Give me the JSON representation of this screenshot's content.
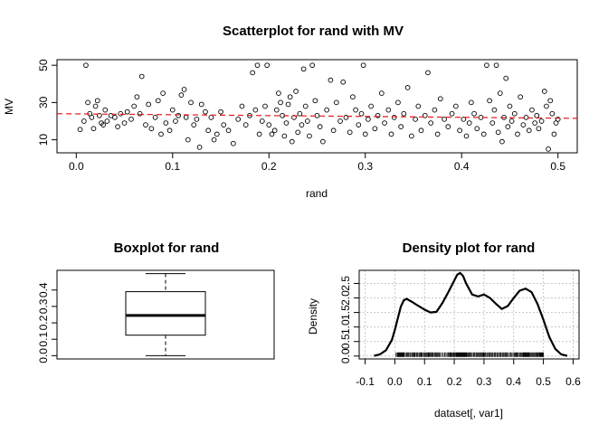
{
  "chart_data": [
    {
      "type": "scatter",
      "title": "Scatterplot for rand with MV",
      "xlabel": "rand",
      "ylabel": "MV",
      "xlim": [
        -0.02,
        0.52
      ],
      "ylim": [
        3,
        53
      ],
      "xticks": [
        0.0,
        0.1,
        0.2,
        0.3,
        0.4,
        0.5
      ],
      "xtick_labels": [
        "0.0",
        "0.1",
        "0.2",
        "0.3",
        "0.4",
        "0.5"
      ],
      "yticks": [
        10,
        30,
        50
      ],
      "ytick_labels": [
        "10",
        "30",
        "50"
      ],
      "trend_line": {
        "style": "dashed",
        "color": "#e31a1c",
        "start": [
          -0.02,
          24.0
        ],
        "end": [
          0.52,
          21.5
        ]
      },
      "point_color": "#000000",
      "points": [
        [
          0.004,
          15.5
        ],
        [
          0.008,
          20
        ],
        [
          0.01,
          50
        ],
        [
          0.012,
          30
        ],
        [
          0.014,
          24
        ],
        [
          0.016,
          22
        ],
        [
          0.018,
          16
        ],
        [
          0.02,
          28
        ],
        [
          0.022,
          31
        ],
        [
          0.024,
          23
        ],
        [
          0.026,
          19
        ],
        [
          0.028,
          18
        ],
        [
          0.03,
          26
        ],
        [
          0.032,
          20
        ],
        [
          0.036,
          23
        ],
        [
          0.04,
          22
        ],
        [
          0.043,
          17
        ],
        [
          0.046,
          24
        ],
        [
          0.05,
          19
        ],
        [
          0.053,
          25
        ],
        [
          0.057,
          21
        ],
        [
          0.06,
          28
        ],
        [
          0.063,
          33
        ],
        [
          0.066,
          24
        ],
        [
          0.068,
          44
        ],
        [
          0.072,
          18
        ],
        [
          0.075,
          29
        ],
        [
          0.078,
          16
        ],
        [
          0.082,
          22
        ],
        [
          0.085,
          31
        ],
        [
          0.088,
          13
        ],
        [
          0.09,
          35
        ],
        [
          0.093,
          19
        ],
        [
          0.097,
          15
        ],
        [
          0.1,
          26
        ],
        [
          0.103,
          20
        ],
        [
          0.106,
          23
        ],
        [
          0.109,
          34
        ],
        [
          0.112,
          37
        ],
        [
          0.114,
          22
        ],
        [
          0.116,
          10
        ],
        [
          0.119,
          30
        ],
        [
          0.122,
          18
        ],
        [
          0.125,
          21
        ],
        [
          0.128,
          6
        ],
        [
          0.13,
          29
        ],
        [
          0.134,
          25
        ],
        [
          0.137,
          15
        ],
        [
          0.14,
          22
        ],
        [
          0.143,
          10
        ],
        [
          0.146,
          13
        ],
        [
          0.15,
          25
        ],
        [
          0.153,
          18
        ],
        [
          0.158,
          15
        ],
        [
          0.163,
          8
        ],
        [
          0.168,
          21
        ],
        [
          0.172,
          28
        ],
        [
          0.176,
          18
        ],
        [
          0.18,
          23
        ],
        [
          0.183,
          46
        ],
        [
          0.186,
          26
        ],
        [
          0.188,
          50
        ],
        [
          0.19,
          13
        ],
        [
          0.193,
          20
        ],
        [
          0.196,
          28
        ],
        [
          0.198,
          50
        ],
        [
          0.2,
          18
        ],
        [
          0.203,
          13
        ],
        [
          0.206,
          15
        ],
        [
          0.208,
          26
        ],
        [
          0.21,
          35
        ],
        [
          0.212,
          30
        ],
        [
          0.214,
          23
        ],
        [
          0.216,
          12
        ],
        [
          0.218,
          19
        ],
        [
          0.22,
          29
        ],
        [
          0.222,
          33
        ],
        [
          0.224,
          9
        ],
        [
          0.226,
          22
        ],
        [
          0.228,
          36
        ],
        [
          0.23,
          14
        ],
        [
          0.232,
          24
        ],
        [
          0.234,
          18
        ],
        [
          0.236,
          48
        ],
        [
          0.238,
          28
        ],
        [
          0.24,
          20
        ],
        [
          0.242,
          12
        ],
        [
          0.245,
          50
        ],
        [
          0.248,
          31
        ],
        [
          0.25,
          23
        ],
        [
          0.253,
          17
        ],
        [
          0.256,
          9
        ],
        [
          0.26,
          26
        ],
        [
          0.264,
          42
        ],
        [
          0.267,
          15
        ],
        [
          0.27,
          30
        ],
        [
          0.274,
          20
        ],
        [
          0.277,
          41
        ],
        [
          0.28,
          22
        ],
        [
          0.284,
          14
        ],
        [
          0.287,
          33
        ],
        [
          0.29,
          26
        ],
        [
          0.293,
          18
        ],
        [
          0.296,
          24
        ],
        [
          0.298,
          50
        ],
        [
          0.3,
          13
        ],
        [
          0.303,
          21
        ],
        [
          0.306,
          28
        ],
        [
          0.31,
          16
        ],
        [
          0.313,
          23
        ],
        [
          0.317,
          35
        ],
        [
          0.32,
          19
        ],
        [
          0.324,
          26
        ],
        [
          0.327,
          13
        ],
        [
          0.33,
          22
        ],
        [
          0.334,
          30
        ],
        [
          0.337,
          17
        ],
        [
          0.34,
          24
        ],
        [
          0.344,
          38
        ],
        [
          0.348,
          12
        ],
        [
          0.352,
          21
        ],
        [
          0.355,
          28
        ],
        [
          0.358,
          15
        ],
        [
          0.362,
          23
        ],
        [
          0.365,
          46
        ],
        [
          0.368,
          19
        ],
        [
          0.372,
          26
        ],
        [
          0.375,
          13
        ],
        [
          0.378,
          32
        ],
        [
          0.382,
          21
        ],
        [
          0.386,
          17
        ],
        [
          0.39,
          24
        ],
        [
          0.394,
          28
        ],
        [
          0.398,
          15
        ],
        [
          0.402,
          21
        ],
        [
          0.405,
          12
        ],
        [
          0.408,
          19
        ],
        [
          0.41,
          30
        ],
        [
          0.413,
          24
        ],
        [
          0.416,
          16
        ],
        [
          0.42,
          22
        ],
        [
          0.423,
          13
        ],
        [
          0.426,
          50
        ],
        [
          0.429,
          31
        ],
        [
          0.432,
          19
        ],
        [
          0.434,
          26
        ],
        [
          0.436,
          50
        ],
        [
          0.438,
          14
        ],
        [
          0.44,
          35
        ],
        [
          0.442,
          9
        ],
        [
          0.444,
          22
        ],
        [
          0.446,
          43
        ],
        [
          0.448,
          17
        ],
        [
          0.45,
          28
        ],
        [
          0.452,
          20
        ],
        [
          0.455,
          24
        ],
        [
          0.458,
          13
        ],
        [
          0.461,
          33
        ],
        [
          0.464,
          18
        ],
        [
          0.467,
          22
        ],
        [
          0.47,
          15
        ],
        [
          0.473,
          26
        ],
        [
          0.476,
          19
        ],
        [
          0.478,
          23
        ],
        [
          0.48,
          16
        ],
        [
          0.483,
          20
        ],
        [
          0.486,
          36
        ],
        [
          0.488,
          28
        ],
        [
          0.49,
          5
        ],
        [
          0.492,
          31
        ],
        [
          0.494,
          24
        ],
        [
          0.496,
          13
        ],
        [
          0.498,
          19
        ],
        [
          0.5,
          21
        ]
      ]
    },
    {
      "type": "box",
      "title": "Boxplot for  rand",
      "ylim": [
        -0.02,
        0.52
      ],
      "yticks": [
        0.0,
        0.1,
        0.2,
        0.3,
        0.4
      ],
      "ytick_labels": [
        "0.0",
        "0.1",
        "0.2",
        "0.3",
        "0.4"
      ],
      "stats": {
        "min": 0.0,
        "q1": 0.125,
        "median": 0.245,
        "q3": 0.39,
        "max": 0.5
      }
    },
    {
      "type": "line",
      "title": "Density plot for rand",
      "xlabel": "dataset[, var1]",
      "ylabel": "Density",
      "xlim": [
        -0.12,
        0.62
      ],
      "ylim": [
        -0.1,
        2.95
      ],
      "xticks": [
        -0.1,
        0.0,
        0.1,
        0.2,
        0.3,
        0.4,
        0.5,
        0.6
      ],
      "xtick_labels": [
        "-0.1",
        "0.0",
        "0.1",
        "0.2",
        "0.3",
        "0.4",
        "0.5",
        "0.6"
      ],
      "yticks": [
        0.0,
        0.5,
        1.0,
        1.5,
        2.0,
        2.5
      ],
      "ytick_labels": [
        "0.0",
        "0.5",
        "1.0",
        "1.5",
        "2.0",
        "2.5"
      ],
      "grid": true,
      "rug": true,
      "x": [
        -0.07,
        -0.05,
        -0.03,
        -0.01,
        0.0,
        0.01,
        0.02,
        0.03,
        0.04,
        0.06,
        0.08,
        0.1,
        0.12,
        0.14,
        0.16,
        0.18,
        0.2,
        0.21,
        0.22,
        0.23,
        0.24,
        0.26,
        0.28,
        0.3,
        0.32,
        0.34,
        0.36,
        0.38,
        0.4,
        0.42,
        0.44,
        0.46,
        0.48,
        0.5,
        0.51,
        0.52,
        0.54,
        0.56,
        0.58
      ],
      "y": [
        0.01,
        0.06,
        0.2,
        0.55,
        0.9,
        1.3,
        1.7,
        1.92,
        1.97,
        1.85,
        1.72,
        1.6,
        1.5,
        1.52,
        1.82,
        2.2,
        2.6,
        2.8,
        2.86,
        2.75,
        2.5,
        2.12,
        2.05,
        2.12,
        2.0,
        1.8,
        1.62,
        1.72,
        2.0,
        2.25,
        2.32,
        2.2,
        1.8,
        1.25,
        0.95,
        0.65,
        0.25,
        0.06,
        0.01
      ]
    }
  ]
}
